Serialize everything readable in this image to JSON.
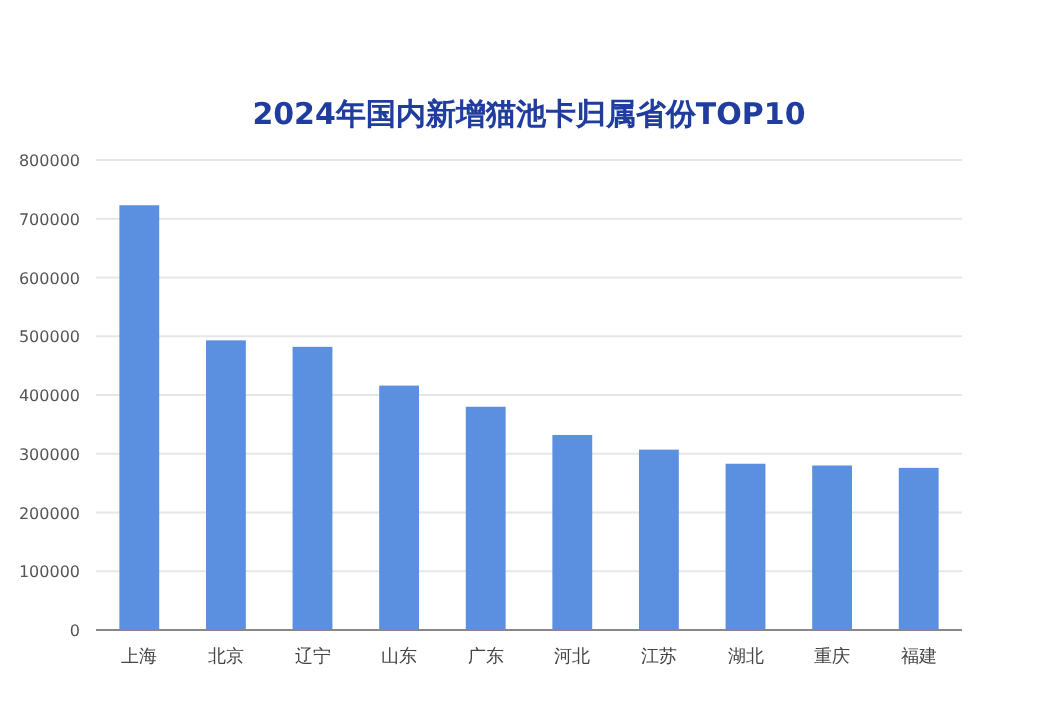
{
  "chart_data": {
    "type": "bar",
    "title": "2024年国内新增猫池卡归属省份TOP10",
    "categories": [
      "上海",
      "北京",
      "辽宁",
      "山东",
      "广东",
      "河北",
      "江苏",
      "湖北",
      "重庆",
      "福建"
    ],
    "values": [
      723000,
      493000,
      482000,
      416000,
      380000,
      332000,
      307000,
      283000,
      280000,
      276000
    ],
    "color": "#5b8fe0",
    "ylim": [
      0,
      800000
    ],
    "yticks": [
      0,
      100000,
      200000,
      300000,
      400000,
      500000,
      600000,
      700000,
      800000
    ],
    "grid": "y"
  }
}
